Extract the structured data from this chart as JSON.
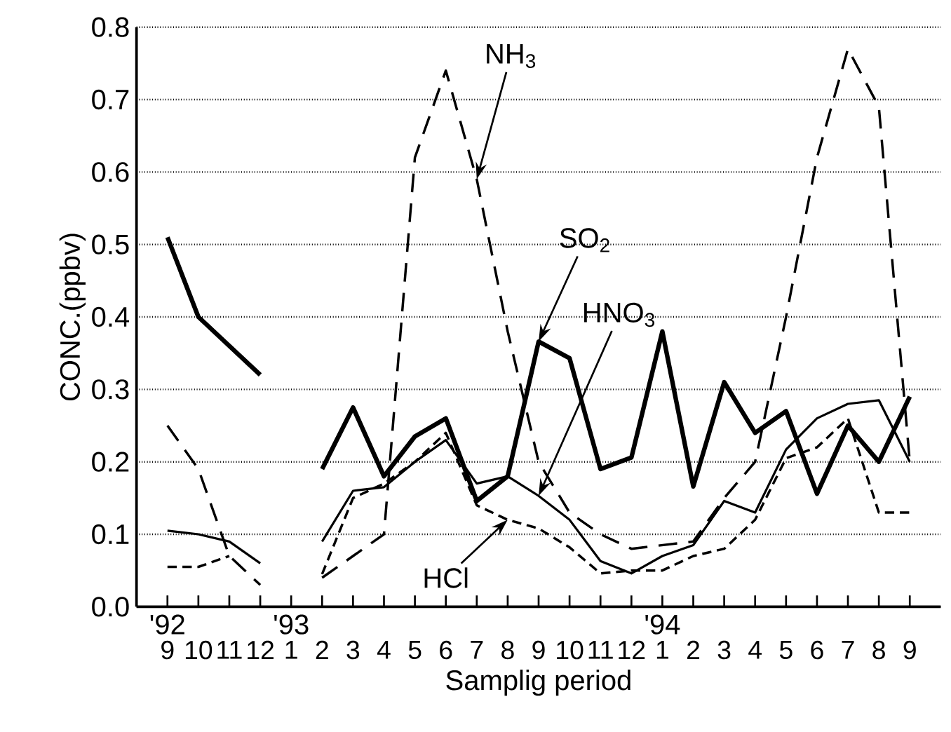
{
  "chart_data": {
    "type": "line",
    "xlabel": "Samplig period",
    "ylabel": "CONC.(ppbv)",
    "x": [
      "1992-09",
      "1992-10",
      "1992-11",
      "1992-12",
      "1993-01",
      "1993-02",
      "1993-03",
      "1993-04",
      "1993-05",
      "1993-06",
      "1993-07",
      "1993-08",
      "1993-09",
      "1993-10",
      "1993-11",
      "1993-12",
      "1994-01",
      "1994-02",
      "1994-03",
      "1994-04",
      "1994-05",
      "1994-06",
      "1994-07",
      "1994-08",
      "1994-09"
    ],
    "series": [
      {
        "color": "#000000",
        "line_style": "solid",
        "values": [
          0.51,
          0.4,
          0.36,
          0.32,
          null,
          0.19,
          0.275,
          0.18,
          0.235,
          0.26,
          0.146,
          0.18,
          0.366,
          0.343,
          0.19,
          0.206,
          0.38,
          0.166,
          0.31,
          0.24,
          0.27,
          0.156,
          0.25,
          0.2,
          0.29
        ]
      },
      {
        "color": "#000000",
        "line_style": "solid",
        "values": [
          0.105,
          0.1,
          0.09,
          0.06,
          null,
          0.09,
          0.16,
          0.165,
          0.2,
          0.23,
          0.17,
          0.18,
          0.153,
          0.12,
          0.063,
          0.046,
          0.07,
          0.085,
          0.146,
          0.13,
          0.217,
          0.26,
          0.28,
          0.285,
          0.2
        ]
      },
      {
        "color": "#000000",
        "line_style": "dashed",
        "values": [
          0.055,
          0.055,
          0.07,
          null,
          null,
          0.045,
          0.15,
          0.17,
          0.2,
          0.24,
          0.14,
          0.12,
          0.108,
          0.082,
          0.046,
          0.05,
          0.05,
          0.07,
          0.08,
          0.12,
          0.205,
          0.22,
          0.26,
          0.13,
          0.13
        ]
      },
      {
        "color": "#000000",
        "line_style": "dashed",
        "values": [
          0.25,
          0.19,
          0.07,
          0.03,
          null,
          0.04,
          0.07,
          0.1,
          0.62,
          0.74,
          0.59,
          0.38,
          0.2,
          0.13,
          0.1,
          0.08,
          0.085,
          0.09,
          0.15,
          0.2,
          0.4,
          0.62,
          0.77,
          0.69,
          0.2
        ]
      }
    ],
    "xlim": [
      "1992-08",
      "1994-10"
    ],
    "xticks": [
      {
        "value": "1992-09",
        "label": "9"
      },
      {
        "value": "1992-10",
        "label": "10"
      },
      {
        "value": "1992-11",
        "label": "11"
      },
      {
        "value": "1992-12",
        "label": "12"
      },
      {
        "value": "1993-01",
        "label": "1"
      },
      {
        "value": "1993-02",
        "label": "2"
      },
      {
        "value": "1993-03",
        "label": "3"
      },
      {
        "value": "1993-04",
        "label": "4"
      },
      {
        "value": "1993-05",
        "label": "5"
      },
      {
        "value": "1993-06",
        "label": "6"
      },
      {
        "value": "1993-07",
        "label": "7"
      },
      {
        "value": "1993-08",
        "label": "8"
      },
      {
        "value": "1993-09",
        "label": "9"
      },
      {
        "value": "1993-10",
        "label": "10"
      },
      {
        "value": "1993-11",
        "label": "11"
      },
      {
        "value": "1993-12",
        "label": "12"
      },
      {
        "value": "1994-01",
        "label": "1"
      },
      {
        "value": "1994-02",
        "label": "2"
      },
      {
        "value": "1994-03",
        "label": "3"
      },
      {
        "value": "1994-04",
        "label": "4"
      },
      {
        "value": "1994-05",
        "label": "5"
      },
      {
        "value": "1994-06",
        "label": "6"
      },
      {
        "value": "1994-07",
        "label": "7"
      },
      {
        "value": "1994-08",
        "label": "8"
      },
      {
        "value": "1994-09",
        "label": "9"
      }
    ],
    "ylim": [
      0,
      0.8
    ],
    "yticks": [
      {
        "value": 0,
        "label": "0.0"
      },
      {
        "value": 0.1,
        "label": "0.1"
      },
      {
        "value": 0.2,
        "label": "0.2"
      },
      {
        "value": 0.3,
        "label": "0.3"
      },
      {
        "value": 0.4,
        "label": "0.4"
      },
      {
        "value": 0.5,
        "label": "0.5"
      },
      {
        "value": 0.6,
        "label": "0.6"
      },
      {
        "value": 0.7,
        "label": "0.7"
      },
      {
        "value": 0.8,
        "label": "0.8"
      }
    ],
    "grid": "y",
    "annotations": [
      "'92",
      "'93",
      "'94",
      {
        "text": "NH$_{3}$",
        "x": "1993-07",
        "y": 0.59
      },
      {
        "text": "SO$_{2}$",
        "x": "1993-09",
        "y": 0.366
      },
      {
        "text": "HNO$_{3}$",
        "x": "1993-09",
        "y": 0.153
      },
      {
        "text": "HCl",
        "x": "1993-08",
        "y": 0.12
      }
    ]
  }
}
